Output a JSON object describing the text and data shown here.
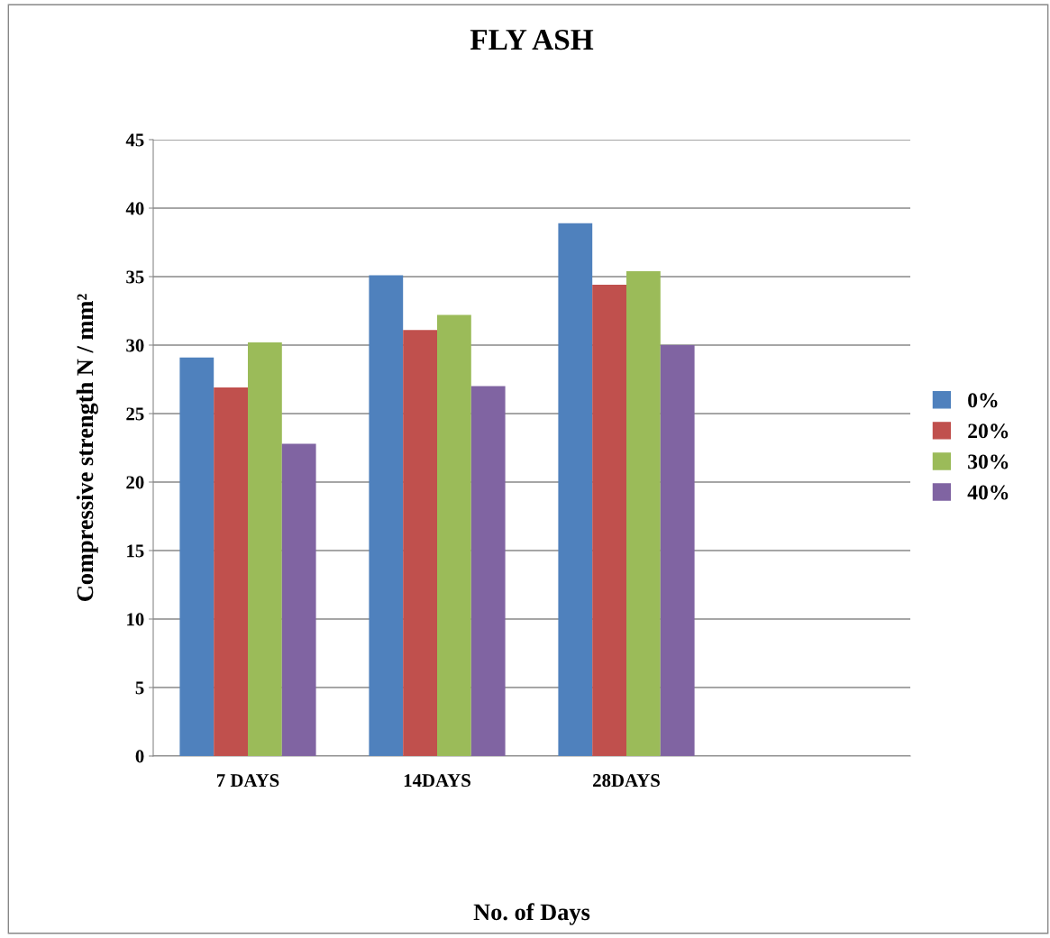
{
  "chart_data": {
    "type": "bar",
    "title": "FLY ASH",
    "xlabel": "No. of Days",
    "ylabel": "Compressive strength N / mm²",
    "categories": [
      "7 DAYS",
      "14DAYS",
      "28DAYS",
      null
    ],
    "series": [
      {
        "name": "0%",
        "color": "#4f81bd",
        "values": [
          29.1,
          35.1,
          38.9,
          null
        ]
      },
      {
        "name": "20%",
        "color": "#c0504d",
        "values": [
          26.9,
          31.1,
          34.4,
          null
        ]
      },
      {
        "name": "30%",
        "color": "#9bbb59",
        "values": [
          30.2,
          32.2,
          35.4,
          null
        ]
      },
      {
        "name": "40%",
        "color": "#8064a2",
        "values": [
          22.8,
          27.0,
          30.0,
          null
        ]
      }
    ],
    "ylim": [
      0,
      45
    ],
    "yticks": [
      0,
      5,
      10,
      15,
      20,
      25,
      30,
      35,
      40,
      45
    ],
    "grid": "y",
    "legend": "right"
  }
}
